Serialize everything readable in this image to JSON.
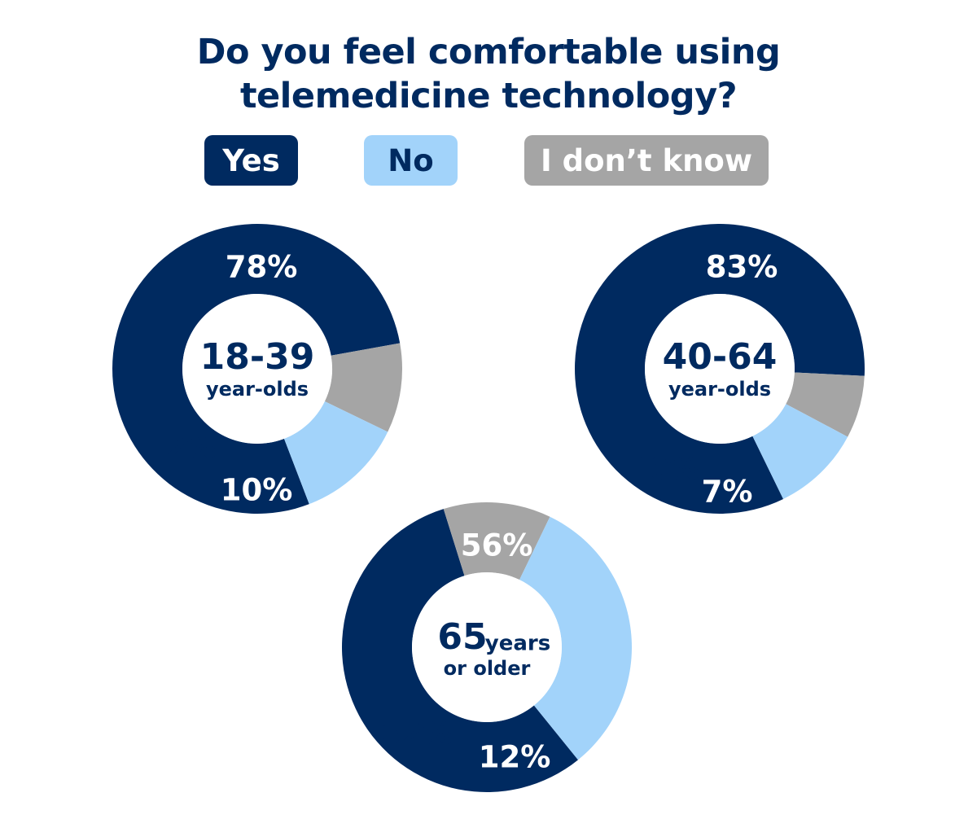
{
  "title_line1": "Do you feel comfortable using",
  "title_line2": "telemedicine technology?",
  "colors": {
    "yes": "#002a60",
    "no": "#a2d3fa",
    "dont_know": "#a5a5a5",
    "title": "#002a60"
  },
  "legend": [
    {
      "label": "Yes"
    },
    {
      "label": "No"
    },
    {
      "label": "I don’t know"
    }
  ],
  "chart_data": {
    "type": "pie",
    "categories": [
      "Yes",
      "No",
      "I don’t know"
    ],
    "groups": [
      {
        "name_main": "18-39",
        "name_sub": "year-olds",
        "values": [
          78,
          12,
          10
        ],
        "labels": [
          "78%",
          "12%",
          "10%"
        ]
      },
      {
        "name_main": "40-64",
        "name_sub": "year-olds",
        "values": [
          83,
          10,
          7
        ],
        "labels": [
          "83%",
          "10%",
          "7%"
        ]
      },
      {
        "name_main": "65",
        "name_inline": "years",
        "name_sub": "or older",
        "values": [
          56,
          32,
          12
        ],
        "labels": [
          "56%",
          "32%",
          "12%"
        ]
      }
    ]
  }
}
